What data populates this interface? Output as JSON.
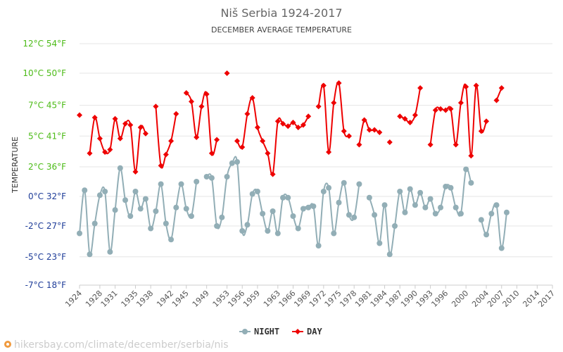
{
  "chart_data": {
    "type": "line",
    "title": "Niš Serbia 1924-2017",
    "subtitle": "DECEMBER AVERAGE TEMPERATURE",
    "ylabel": "TEMPERATURE",
    "ylim": [
      -7.2,
      12.4
    ],
    "y_ticks": [
      {
        "value": 12.4,
        "label": "12°C 54°F",
        "color": "#4cbb17"
      },
      {
        "value": 10,
        "label": "10°C 50°F",
        "color": "#4cbb17"
      },
      {
        "value": 7.4,
        "label": "7°C 45°F",
        "color": "#4cbb17"
      },
      {
        "value": 4.9,
        "label": "5°C 41°F",
        "color": "#4cbb17"
      },
      {
        "value": 2.4,
        "label": "2°C 36°F",
        "color": "#4cbb17"
      },
      {
        "value": 0,
        "label": "0°C 32°F",
        "color": "#1f3d99"
      },
      {
        "value": -2.4,
        "label": "-2°C 27°F",
        "color": "#1f3d99"
      },
      {
        "value": -4.9,
        "label": "-5°C 23°F",
        "color": "#1f3d99"
      },
      {
        "value": -7.2,
        "label": "-7°C 18°F",
        "color": "#1f3d99"
      }
    ],
    "xlim": [
      1924,
      2017
    ],
    "x_ticks": [
      1924,
      1928,
      1931,
      1935,
      1938,
      1942,
      1945,
      1949,
      1953,
      1956,
      1959,
      1963,
      1966,
      1969,
      1972,
      1975,
      1978,
      1981,
      1984,
      1987,
      1990,
      1993,
      1996,
      2000,
      2004,
      2007,
      2010,
      2014,
      2017
    ],
    "grid": true,
    "legend_position": "bottom-center",
    "series": [
      {
        "name": "NIGHT",
        "color": "#92aeb6",
        "marker": "circle",
        "points": [
          [
            1924,
            -3.0
          ],
          [
            1925,
            0.5
          ],
          [
            1926,
            -4.7
          ],
          [
            1927,
            -2.2
          ],
          [
            1928,
            0.1
          ],
          [
            1929,
            0.4
          ],
          [
            1930,
            -4.5
          ],
          [
            1931,
            -1.1
          ],
          [
            1932,
            2.3
          ],
          [
            1933,
            -0.3
          ],
          [
            1934,
            -1.6
          ],
          [
            1935,
            0.4
          ],
          [
            1936,
            -1.0
          ],
          [
            1937,
            -0.2
          ],
          [
            1938,
            -2.6
          ],
          [
            1939,
            -1.2
          ],
          [
            1940,
            1.0
          ],
          [
            1941,
            -2.2
          ],
          [
            1942,
            -3.5
          ],
          [
            1943,
            -0.9
          ],
          [
            1944,
            1.0
          ],
          [
            1945,
            -1.0
          ],
          [
            1946,
            -1.6
          ],
          [
            1947,
            1.2
          ],
          [
            1949,
            1.6
          ],
          [
            1950,
            1.5
          ],
          [
            1951,
            -2.4
          ],
          [
            1952,
            -1.7
          ],
          [
            1953,
            1.6
          ],
          [
            1954,
            2.7
          ],
          [
            1955,
            2.8
          ],
          [
            1956,
            -2.8
          ],
          [
            1957,
            -2.3
          ],
          [
            1958,
            0.2
          ],
          [
            1959,
            0.4
          ],
          [
            1960,
            -1.4
          ],
          [
            1961,
            -2.8
          ],
          [
            1962,
            -1.2
          ],
          [
            1963,
            -3.0
          ],
          [
            1964,
            -0.1
          ],
          [
            1965,
            -0.1
          ],
          [
            1966,
            -1.6
          ],
          [
            1967,
            -2.6
          ],
          [
            1968,
            -1.0
          ],
          [
            1969,
            -0.9
          ],
          [
            1970,
            -0.8
          ],
          [
            1971,
            -4.0
          ],
          [
            1972,
            0.4
          ],
          [
            1973,
            0.7
          ],
          [
            1974,
            -3.0
          ],
          [
            1975,
            -0.5
          ],
          [
            1976,
            1.1
          ],
          [
            1977,
            -1.5
          ],
          [
            1978,
            -1.7
          ],
          [
            1979,
            1.0
          ],
          [
            1981,
            -0.1
          ],
          [
            1982,
            -1.5
          ],
          [
            1983,
            -3.8
          ],
          [
            1984,
            -0.7
          ],
          [
            1985,
            -4.7
          ],
          [
            1986,
            -2.4
          ],
          [
            1987,
            0.4
          ],
          [
            1988,
            -1.3
          ],
          [
            1989,
            0.6
          ],
          [
            1990,
            -0.7
          ],
          [
            1991,
            0.3
          ],
          [
            1992,
            -0.9
          ],
          [
            1993,
            -0.2
          ],
          [
            1994,
            -1.4
          ],
          [
            1995,
            -0.9
          ],
          [
            1996,
            0.8
          ],
          [
            1997,
            0.7
          ],
          [
            1998,
            -0.9
          ],
          [
            1999,
            -1.4
          ],
          [
            2000,
            2.2
          ],
          [
            2001,
            1.1
          ],
          [
            2003,
            -1.9
          ],
          [
            2004,
            -3.1
          ],
          [
            2005,
            -1.4
          ],
          [
            2006,
            -0.7
          ],
          [
            2007,
            -4.2
          ],
          [
            2008,
            -1.3
          ]
        ]
      },
      {
        "name": "DAY",
        "color": "#ee0000",
        "marker": "diamond",
        "points": [
          [
            1924,
            6.6
          ],
          [
            1926,
            3.5
          ],
          [
            1927,
            6.4
          ],
          [
            1928,
            4.7
          ],
          [
            1929,
            3.6
          ],
          [
            1930,
            3.8
          ],
          [
            1931,
            6.3
          ],
          [
            1932,
            4.7
          ],
          [
            1933,
            5.9
          ],
          [
            1934,
            5.8
          ],
          [
            1935,
            2.0
          ],
          [
            1936,
            5.6
          ],
          [
            1937,
            5.1
          ],
          [
            1939,
            7.3
          ],
          [
            1940,
            2.5
          ],
          [
            1941,
            3.4
          ],
          [
            1942,
            4.5
          ],
          [
            1943,
            6.7
          ],
          [
            1945,
            8.4
          ],
          [
            1946,
            7.7
          ],
          [
            1947,
            4.8
          ],
          [
            1948,
            7.3
          ],
          [
            1949,
            8.3
          ],
          [
            1950,
            3.5
          ],
          [
            1951,
            4.6
          ],
          [
            1953,
            10.0
          ],
          [
            1955,
            4.5
          ],
          [
            1956,
            4.0
          ],
          [
            1957,
            6.7
          ],
          [
            1958,
            8.0
          ],
          [
            1959,
            5.6
          ],
          [
            1960,
            4.5
          ],
          [
            1961,
            3.5
          ],
          [
            1962,
            1.8
          ],
          [
            1963,
            6.1
          ],
          [
            1964,
            5.9
          ],
          [
            1965,
            5.7
          ],
          [
            1966,
            6.0
          ],
          [
            1967,
            5.6
          ],
          [
            1968,
            5.8
          ],
          [
            1969,
            6.5
          ],
          [
            1971,
            7.3
          ],
          [
            1972,
            9.0
          ],
          [
            1973,
            3.6
          ],
          [
            1974,
            7.6
          ],
          [
            1975,
            9.2
          ],
          [
            1976,
            5.3
          ],
          [
            1977,
            4.9
          ],
          [
            1979,
            4.2
          ],
          [
            1980,
            6.2
          ],
          [
            1981,
            5.4
          ],
          [
            1982,
            5.4
          ],
          [
            1983,
            5.2
          ],
          [
            1985,
            4.4
          ],
          [
            1987,
            6.5
          ],
          [
            1988,
            6.3
          ],
          [
            1989,
            6.0
          ],
          [
            1990,
            6.6
          ],
          [
            1991,
            8.8
          ],
          [
            1993,
            4.2
          ],
          [
            1994,
            7.0
          ],
          [
            1995,
            7.1
          ],
          [
            1996,
            7.0
          ],
          [
            1997,
            7.1
          ],
          [
            1998,
            4.2
          ],
          [
            1999,
            7.6
          ],
          [
            2000,
            8.9
          ],
          [
            2001,
            3.3
          ],
          [
            2002,
            9.0
          ],
          [
            2003,
            5.3
          ],
          [
            2004,
            6.1
          ],
          [
            2006,
            7.8
          ],
          [
            2007,
            8.8
          ]
        ]
      }
    ]
  },
  "watermark": "hikersbay.com/climate/december/serbia/nis"
}
